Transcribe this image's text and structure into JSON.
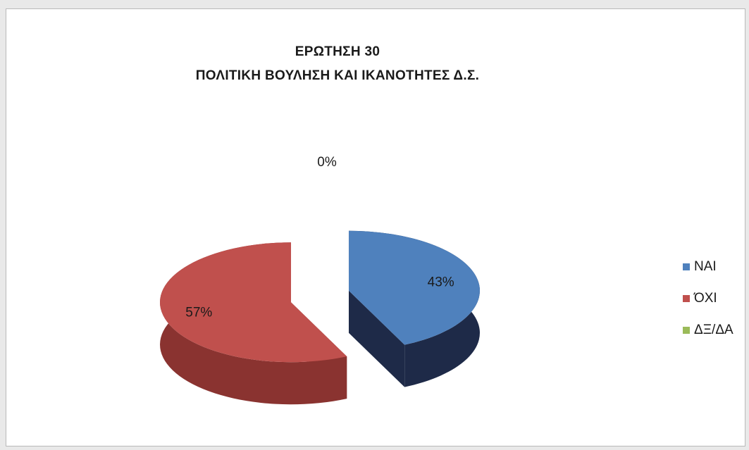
{
  "chart_data": {
    "type": "pie",
    "title": "ΕΡΩΤΗΣΗ 30",
    "subtitle": "ΠΟΛΙΤΙΚΗ ΒΟΥΛΗΣΗ ΚΑΙ ΙΚΑΝΟΤΗΤΕΣ Δ.Σ.",
    "legend_position": "right",
    "slices": [
      {
        "label": "ΝΑΙ",
        "value": 43,
        "display": "43%",
        "color": "#4f81bd",
        "side_color": "#1e2a48"
      },
      {
        "label": "ΌΧΙ",
        "value": 57,
        "display": "57%",
        "color": "#c0504d",
        "side_color": "#8a3330"
      },
      {
        "label": "ΔΞ/ΔΑ",
        "value": 0,
        "display": "0%",
        "color": "#9bbb59",
        "side_color": "#6f8a3c"
      }
    ]
  }
}
